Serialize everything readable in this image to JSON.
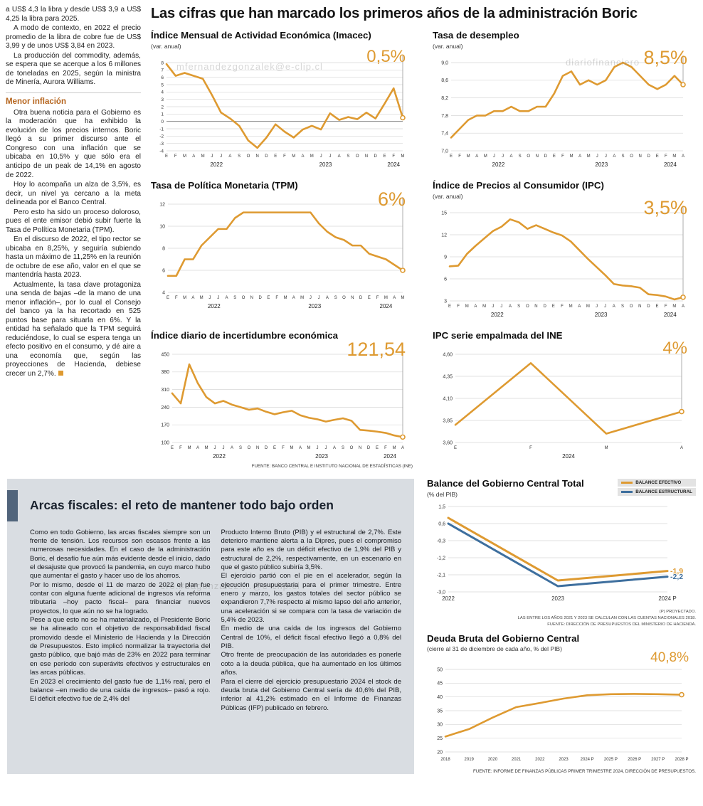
{
  "colors": {
    "orange": "#DE9A31",
    "blue": "#3E6F9E",
    "grid": "#d7d7d7"
  },
  "watermarks": [
    "mfernandezgonzalek@e-clip.cl",
    "diariofinanciero",
    "ero.#dagonzalez....@e-clip.cl"
  ],
  "headline": "Las cifras que han marcado los primeros años de la administración Boric",
  "left": {
    "paras1": [
      "a US$ 4,3 la libra y desde US$ 3,9 a US$ 4,25 la libra para 2025.",
      "A modo de contexto, en 2022 el precio promedio de la libra de cobre fue de US$ 3,99 y de unos US$ 3,84 en 2023.",
      "La producción del commodity, además, se espera que se acerque a los 6 millones de toneladas en 2025, según la ministra de Minería, Aurora Williams."
    ],
    "subhead": "Menor inflación",
    "paras2": [
      "Otra buena noticia para el Gobierno es la moderación que ha exhibido la evolución de los precios internos. Boric llegó a su primer discurso ante el Congreso con una inflación que se ubicaba en 10,5% y que sólo era el anticipo de un peak de 14,1% en agosto de 2022.",
      "Hoy lo acompaña un alza de 3,5%, es decir, un nivel ya cercano a la meta delineada por el Banco Central.",
      "Pero esto ha sido un proceso doloroso, pues el ente emisor debió subir fuerte la Tasa de Política Monetaria (TPM).",
      "En el discurso de 2022, el tipo rector se ubicaba en 8,25%, y seguiría subiendo hasta un máximo de 11,25% en la reunión de octubre de ese año, valor en el que se mantendría hasta 2023.",
      "Actualmente, la tasa clave protagoniza una senda de bajas –de la mano de una menor inflación–, por lo cual el Consejo del banco ya la ha recortado en 525 puntos base para situarla en 6%. Y la entidad ha señalado que la TPM seguirá reduciéndose, lo cual se espera tenga un efecto positivo en el consumo, y dé aire a una economía que, según las proyecciones de Hacienda, debiese crecer un 2,7%."
    ]
  },
  "charts": [
    {
      "type": "line",
      "title": "Índice Mensual de Actividad Económica (Imacec)",
      "subtitle": "(var. anual)",
      "highlight": "0,5%",
      "highlight_size": 24,
      "y_min": -4,
      "y_max": 8,
      "y_font": 6.5,
      "y_ticks": [
        {
          "v": 8,
          "label": "8"
        },
        {
          "v": 7,
          "label": "7"
        },
        {
          "v": 6,
          "label": "6"
        },
        {
          "v": 5,
          "label": "5"
        },
        {
          "v": 4,
          "label": "4"
        },
        {
          "v": 3,
          "label": "3"
        },
        {
          "v": 2,
          "label": "2"
        },
        {
          "v": 1,
          "label": "1"
        },
        {
          "v": 0,
          "label": "0"
        },
        {
          "v": -1,
          "label": "-1"
        },
        {
          "v": -2,
          "label": "-2"
        },
        {
          "v": -3,
          "label": "-3"
        },
        {
          "v": -4,
          "label": "-4"
        }
      ],
      "zero_line": true,
      "x_labels": [
        "E",
        "F",
        "M",
        "A",
        "M",
        "J",
        "J",
        "A",
        "S",
        "O",
        "N",
        "D",
        "E",
        "F",
        "M",
        "A",
        "M",
        "J",
        "J",
        "A",
        "S",
        "O",
        "N",
        "D",
        "E",
        "F",
        "M"
      ],
      "years": [
        {
          "label": "2022",
          "start": 0,
          "end": 11
        },
        {
          "label": "2023",
          "start": 12,
          "end": 23
        },
        {
          "label": "2024",
          "start": 24,
          "end": 26
        }
      ],
      "margins": {
        "l": 22,
        "r": 14,
        "t": 16,
        "b": 24
      },
      "pointer": true,
      "series": [
        {
          "name": "Imacec",
          "color": "orange",
          "values": [
            7.8,
            6.2,
            6.6,
            6.2,
            5.8,
            3.6,
            1.2,
            0.4,
            -0.6,
            -2.6,
            -3.6,
            -2.2,
            -0.4,
            -1.4,
            -2.2,
            -1.1,
            -0.6,
            -1.1,
            1.1,
            0.2,
            0.6,
            0.3,
            1.2,
            0.4,
            2.4,
            4.5,
            0.5
          ]
        }
      ]
    },
    {
      "type": "line",
      "title": "Tasa de desempleo",
      "subtitle": "(var. anual)",
      "highlight": "8,5%",
      "highlight_size": 27,
      "y_min": 7.0,
      "y_max": 9.0,
      "y_font": 7,
      "y_ticks": [
        {
          "v": 9.0,
          "label": "9,0"
        },
        {
          "v": 8.6,
          "label": "8,6"
        },
        {
          "v": 8.2,
          "label": "8,2"
        },
        {
          "v": 7.8,
          "label": "7,8"
        },
        {
          "v": 7.4,
          "label": "7,4"
        },
        {
          "v": 7.0,
          "label": "7,0"
        }
      ],
      "x_labels": [
        "E",
        "F",
        "M",
        "A",
        "M",
        "J",
        "J",
        "A",
        "S",
        "O",
        "N",
        "D",
        "E",
        "F",
        "M",
        "A",
        "M",
        "J",
        "J",
        "A",
        "S",
        "O",
        "N",
        "D",
        "E",
        "F",
        "M",
        "A"
      ],
      "years": [
        {
          "label": "2022",
          "start": 0,
          "end": 11
        },
        {
          "label": "2023",
          "start": 12,
          "end": 23
        },
        {
          "label": "2024",
          "start": 24,
          "end": 27
        }
      ],
      "margins": {
        "l": 26,
        "r": 16,
        "t": 16,
        "b": 24
      },
      "pointer": true,
      "series": [
        {
          "name": "Desempleo",
          "color": "orange",
          "values": [
            7.3,
            7.5,
            7.7,
            7.8,
            7.8,
            7.9,
            7.9,
            8.0,
            7.9,
            7.9,
            8.0,
            8.0,
            8.3,
            8.7,
            8.8,
            8.5,
            8.6,
            8.5,
            8.6,
            8.9,
            9.0,
            8.9,
            8.7,
            8.5,
            8.4,
            8.5,
            8.7,
            8.5
          ]
        }
      ]
    },
    {
      "type": "line",
      "title": "Tasa de Política Monetaria (TPM)",
      "highlight": "6%",
      "highlight_size": 27,
      "y_min": 4,
      "y_max": 12,
      "y_font": 7,
      "y_ticks": [
        {
          "v": 12,
          "label": "12"
        },
        {
          "v": 10,
          "label": "10"
        },
        {
          "v": 8,
          "label": "8"
        },
        {
          "v": 6,
          "label": "6"
        },
        {
          "v": 4,
          "label": "4"
        }
      ],
      "x_labels": [
        "E",
        "F",
        "M",
        "A",
        "M",
        "J",
        "J",
        "A",
        "S",
        "O",
        "N",
        "D",
        "E",
        "F",
        "M",
        "A",
        "M",
        "J",
        "J",
        "A",
        "S",
        "O",
        "N",
        "D",
        "E",
        "F",
        "M",
        "A",
        "M"
      ],
      "years": [
        {
          "label": "2022",
          "start": 0,
          "end": 11
        },
        {
          "label": "2023",
          "start": 12,
          "end": 23
        },
        {
          "label": "2024",
          "start": 24,
          "end": 28
        }
      ],
      "margins": {
        "l": 24,
        "r": 14,
        "t": 16,
        "b": 24
      },
      "pointer": true,
      "series": [
        {
          "name": "TPM",
          "color": "orange",
          "values": [
            5.5,
            5.5,
            7.0,
            7.0,
            8.25,
            9.0,
            9.75,
            9.75,
            10.75,
            11.25,
            11.25,
            11.25,
            11.25,
            11.25,
            11.25,
            11.25,
            11.25,
            11.25,
            10.25,
            9.5,
            9.0,
            8.75,
            8.25,
            8.25,
            7.5,
            7.25,
            7.0,
            6.5,
            6.0
          ]
        }
      ]
    },
    {
      "type": "line",
      "title": "Índice de Precios al Consumidor (IPC)",
      "subtitle": "(var. anual)",
      "highlight": "3,5%",
      "highlight_size": 27,
      "y_min": 3,
      "y_max": 15,
      "y_font": 7,
      "y_ticks": [
        {
          "v": 15,
          "label": "15"
        },
        {
          "v": 12,
          "label": "12"
        },
        {
          "v": 9,
          "label": "9"
        },
        {
          "v": 6,
          "label": "6"
        },
        {
          "v": 3,
          "label": "3"
        }
      ],
      "x_labels": [
        "E",
        "F",
        "M",
        "A",
        "M",
        "J",
        "J",
        "A",
        "S",
        "O",
        "N",
        "D",
        "E",
        "F",
        "M",
        "A",
        "M",
        "J",
        "J",
        "A",
        "S",
        "O",
        "N",
        "D",
        "E",
        "F",
        "M",
        "A"
      ],
      "years": [
        {
          "label": "2022",
          "start": 0,
          "end": 11
        },
        {
          "label": "2023",
          "start": 12,
          "end": 23
        },
        {
          "label": "2024",
          "start": 24,
          "end": 27
        }
      ],
      "margins": {
        "l": 24,
        "r": 16,
        "t": 16,
        "b": 24
      },
      "pointer": true,
      "series": [
        {
          "name": "IPC",
          "color": "orange",
          "values": [
            7.7,
            7.8,
            9.4,
            10.5,
            11.5,
            12.5,
            13.1,
            14.1,
            13.7,
            12.8,
            13.3,
            12.8,
            12.3,
            11.9,
            11.1,
            9.9,
            8.7,
            7.6,
            6.5,
            5.3,
            5.1,
            5.0,
            4.8,
            3.9,
            3.8,
            3.6,
            3.2,
            3.5
          ]
        }
      ]
    },
    {
      "type": "line",
      "title": "Índice diario de incertidumbre económica",
      "highlight": "121,54",
      "highlight_size": 27,
      "y_min": 100,
      "y_max": 450,
      "y_font": 7,
      "y_ticks": [
        {
          "v": 450,
          "label": "450"
        },
        {
          "v": 380,
          "label": "380"
        },
        {
          "v": 310,
          "label": "310"
        },
        {
          "v": 240,
          "label": "240"
        },
        {
          "v": 170,
          "label": "170"
        },
        {
          "v": 100,
          "label": "100"
        }
      ],
      "x_labels": [
        "E",
        "F",
        "M",
        "A",
        "M",
        "J",
        "J",
        "A",
        "S",
        "O",
        "N",
        "D",
        "E",
        "F",
        "M",
        "A",
        "M",
        "J",
        "J",
        "A",
        "S",
        "O",
        "N",
        "D",
        "E",
        "F",
        "M",
        "A"
      ],
      "years": [
        {
          "label": "2022",
          "start": 0,
          "end": 11
        },
        {
          "label": "2023",
          "start": 12,
          "end": 23
        },
        {
          "label": "2024",
          "start": 24,
          "end": 27
        }
      ],
      "margins": {
        "l": 30,
        "r": 14,
        "t": 16,
        "b": 24
      },
      "pointer": true,
      "series": [
        {
          "name": "Incertidumbre",
          "color": "orange",
          "values": [
            295,
            255,
            410,
            335,
            280,
            255,
            265,
            250,
            240,
            230,
            235,
            222,
            212,
            220,
            226,
            208,
            198,
            192,
            183,
            190,
            196,
            186,
            150,
            147,
            143,
            138,
            128,
            121.54
          ]
        }
      ],
      "source": "FUENTE: BANCO CENTRAL E INSTITUTO NACIONAL DE ESTADÍSTICAS (INE)"
    },
    {
      "type": "line",
      "title": "IPC serie empalmada del INE",
      "highlight": "4%",
      "highlight_size": 24,
      "y_min": 3.6,
      "y_max": 4.6,
      "y_font": 7,
      "y_ticks": [
        {
          "v": 4.6,
          "label": "4,60"
        },
        {
          "v": 4.35,
          "label": "4,35"
        },
        {
          "v": 4.1,
          "label": "4,10"
        },
        {
          "v": 3.85,
          "label": "3,85"
        },
        {
          "v": 3.6,
          "label": "3,60"
        }
      ],
      "x_labels": [
        "E",
        "F",
        "M",
        "A"
      ],
      "years": [
        {
          "label": "2024",
          "start": 0,
          "end": 3
        }
      ],
      "margins": {
        "l": 32,
        "r": 18,
        "t": 16,
        "b": 24
      },
      "pointer": true,
      "series": [
        {
          "name": "IPC INE",
          "color": "orange",
          "values": [
            3.8,
            4.5,
            3.7,
            3.95
          ]
        }
      ]
    },
    {
      "type": "line",
      "title": "Balance del Gobierno Central Total",
      "subtitle": "(% del PIB)",
      "y_min": -3.0,
      "y_max": 1.5,
      "y_font": 7,
      "y_ticks": [
        {
          "v": 1.5,
          "label": "1,5"
        },
        {
          "v": 0.6,
          "label": "0,6"
        },
        {
          "v": -0.3,
          "label": "-0,3"
        },
        {
          "v": -1.2,
          "label": "-1,2"
        },
        {
          "v": -2.1,
          "label": "-2,1"
        },
        {
          "v": -3.0,
          "label": "-3,0"
        }
      ],
      "x_labels": [
        "2022",
        "2023",
        "2024 P"
      ],
      "x_font": 8,
      "margins": {
        "l": 30,
        "r": 40,
        "t": 10,
        "b": 18
      },
      "pointer": false,
      "marker": false,
      "line_width": 3,
      "series": [
        {
          "name": "BALANCE EFECTIVO",
          "color": "orange",
          "values": [
            0.9,
            -2.4,
            -1.9
          ]
        },
        {
          "name": "BALANCE ESTRUCTURAL",
          "color": "blue",
          "values": [
            0.6,
            -2.7,
            -2.2
          ]
        }
      ],
      "end_labels": [
        {
          "text": "-1,9",
          "color": "orange"
        },
        {
          "text": "-2,2",
          "color": "blue"
        }
      ],
      "legend": [
        "BALANCE EFECTIVO",
        "BALANCE ESTRUCTURAL"
      ],
      "footnotes": [
        "(P) PROYECTADO.",
        "LAS ENTRE LOS AÑOS 2021 Y 2023 SE CALCULAN  CON LAS CUENTAS NACIONALES 2018.",
        "FUENTE: DIRECCIÓN DE PRESUPUESTOS DEL MINISTERIO DE HACIENDA."
      ]
    },
    {
      "type": "line",
      "title": "Deuda Bruta del Gobierno Central",
      "subtitle": "(cierre al 31 de diciembre de cada año, % del PIB)",
      "highlight": "40,8%",
      "highlight_size": 19,
      "y_min": 20,
      "y_max": 50,
      "y_font": 7,
      "y_ticks": [
        {
          "v": 50,
          "label": "50"
        },
        {
          "v": 45,
          "label": "45"
        },
        {
          "v": 40,
          "label": "40"
        },
        {
          "v": 35,
          "label": "35"
        },
        {
          "v": 30,
          "label": "30"
        },
        {
          "v": 25,
          "label": "25"
        },
        {
          "v": 20,
          "label": "20"
        }
      ],
      "x_labels": [
        "2018",
        "2019",
        "2020",
        "2021",
        "2022",
        "2023",
        "2024 P",
        "2025 P",
        "2026 P",
        "2027 P",
        "2028 P"
      ],
      "x_font": 6,
      "margins": {
        "l": 26,
        "r": 20,
        "t": 22,
        "b": 18
      },
      "pointer": false,
      "series": [
        {
          "name": "Deuda bruta",
          "color": "orange",
          "values": [
            25.6,
            28.3,
            32.5,
            36.3,
            37.8,
            39.4,
            40.6,
            41.0,
            41.1,
            41.0,
            40.8
          ]
        }
      ],
      "source": "FUENTE: INFORME DE FINANZAS PÚBLICAS PRIMER TRIMESTRE 2024, DIRECCIÓN DE PRESUPUESTOS."
    }
  ],
  "fiscal": {
    "title": "Arcas fiscales: el reto de mantener todo bajo orden",
    "col1": [
      "Como en todo Gobierno, las arcas fiscales siempre son un frente de tensión. Los recursos son escasos frente a las numerosas necesidades. En el caso de la administración Boric, el desafío fue aún más evidente desde el inicio, dado el desajuste que provocó la pandemia, en cuyo marco hubo que aumentar el gasto y hacer uso de los ahorros.",
      "Por lo mismo, desde el 11 de marzo de 2022 el plan fue contar con alguna fuente adicional de ingresos vía reforma tributaria –hoy pacto fiscal– para financiar nuevos proyectos, lo que aún no se ha logrado.",
      "Pese a que esto no se ha materializado, el Presidente Boric se ha alineado con el objetivo de responsabilidad fiscal promovido desde el Ministerio de Hacienda y la Dirección de Presupuestos. Esto implicó normalizar la trayectoria del gasto público, que bajó más de 23% en 2022 para terminar en ese período con superávits efectivos y estructurales en las arcas públicas.",
      "En 2023 el crecimiento del gasto fue de 1,1% real, pero el balance –en medio de una caída de ingresos–  pasó a rojo. El déficit efectivo fue de 2,4% del"
    ],
    "col2": [
      "Producto Interno Bruto (PIB) y el estructural de 2,7%. Este deterioro mantiene alerta a la Dipres, pues el compromiso para este año es de un déficit efectivo de 1,9% del PIB y estructural de 2,2%, respectivamente, en un escenario en que el gasto público subiría 3,5%.",
      "El ejercicio partió con el pie en el acelerador, según la ejecución presupuestaria para el primer trimestre. Entre enero y marzo, los gastos totales del sector público se expandieron 7,7% respecto al mismo lapso del año anterior, una aceleración si se compara con la tasa de variación de 5,4% de 2023.",
      "En medio de una caída de los ingresos del Gobierno Central de 10%, el déficit fiscal efectivo llegó a 0,8% del PIB.",
      "Otro frente de preocupación de las autoridades es ponerle coto a la deuda pública, que ha aumentado en los últimos años.",
      "Para el cierre del ejercicio presupuestario 2024 el stock de deuda bruta del Gobierno Central sería de 40,6% del PIB, inferior al 41,2% estimado en el Informe de Finanzas Públicas (IFP) publicado en febrero."
    ]
  }
}
